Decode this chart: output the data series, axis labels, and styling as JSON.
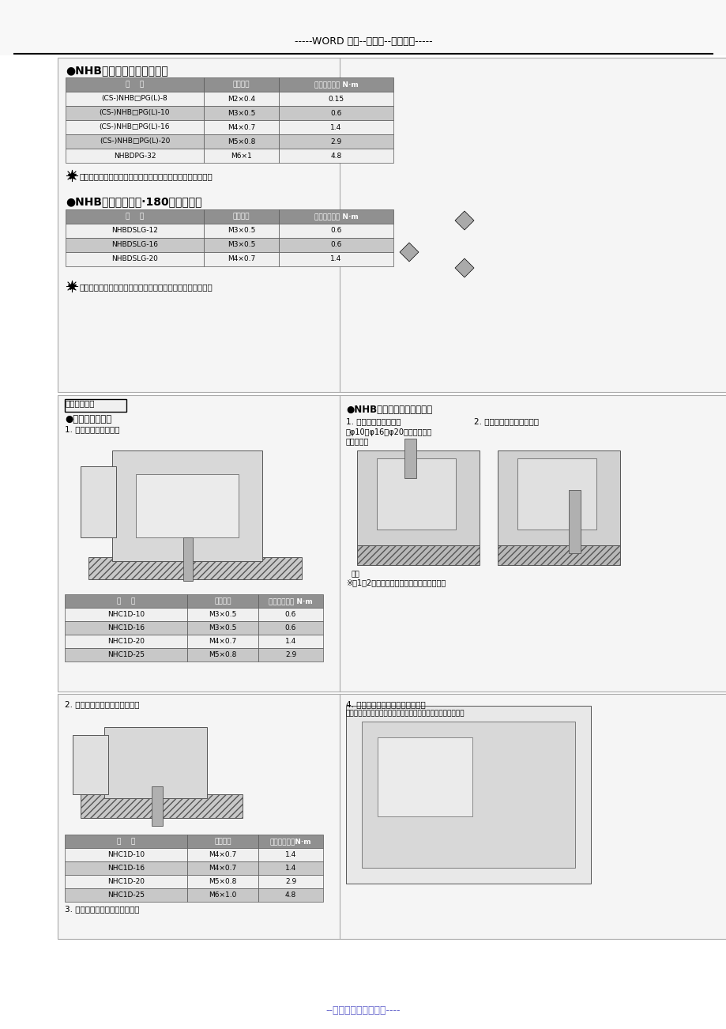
{
  "page_title": "-----WORD 格式--可编辑--专业资料-----",
  "bottom_text": "--完整版学习资料分享----",
  "section1_title": "●NHB系列（直线导轨式样）",
  "table1_headers": [
    "型    号",
    "使用螺栓",
    "最大拧紧扈矩 N·m"
  ],
  "table1_rows": [
    [
      "(CS-)NHB□PG(L)-8",
      "M2×0.4",
      "0.15"
    ],
    [
      "(CS-)NHB□PG(L)-10",
      "M3×0.5",
      "0.6"
    ],
    [
      "(CS-)NHB□PG(L)-16",
      "M4×0.7",
      "1.4"
    ],
    [
      "(CS-)NHB□PG(L)-20",
      "M5×0.8",
      "2.9"
    ],
    [
      "NHBDPG-32",
      "M6×1",
      "4.8"
    ]
  ],
  "note1": "请避免在手指靠拢及手指滚块安装部施加横向载荷进行使用。",
  "section2_title": "●NHB系列（高精度·180度开式样）",
  "table2_headers": [
    "型    号",
    "使用螺栓",
    "最大拧紧扈矩 N·m"
  ],
  "table2_rows": [
    [
      "NHBDSLG-12",
      "M3×0.5",
      "0.6"
    ],
    [
      "NHBDSLG-16",
      "M3×0.5",
      "0.6"
    ],
    [
      "NHBDSLG-20",
      "M4×0.7",
      "1.4"
    ]
  ],
  "note2": "请避免在手指靠拢及手指滚块安装部施加横向载荷进行使用。",
  "box3_title": "本体安装方法",
  "section3_subtitle": "●直线导向并列型",
  "section3_sub1": "1. 使用本体通孔的方法",
  "section4_title": "●NHB系列（直线导轨式样）",
  "section4_sub1": "1. 使用本体通孔的方法",
  "section4_sub2": "2. 使用本体背面螺钉的方法",
  "section4_bracket": "（φ10、φ16、φ20的磁性开关无\n法安装。）",
  "section4_label": "本体",
  "section4_footnote": "※例1、2的情况下，也可使用背面的定位孔。",
  "table3_headers": [
    "型    号",
    "使用螺栓",
    "最大拧紧扈矩 N·m"
  ],
  "table3_rows": [
    [
      "NHC1D-10",
      "M3×0.5",
      "0.6"
    ],
    [
      "NHC1D-16",
      "M3×0.5",
      "0.6"
    ],
    [
      "NHC1D-20",
      "M4×0.7",
      "1.4"
    ],
    [
      "NHC1D-25",
      "M5×0.8",
      "2.9"
    ]
  ],
  "section5_sub2": "2. 使用本体两面安装螺钉的方法",
  "table4_headers": [
    "型    号",
    "使用螺栓",
    "最大拧紧扈矩N·m"
  ],
  "table4_rows": [
    [
      "NHC1D-10",
      "M4×0.7",
      "1.4"
    ],
    [
      "NHC1D-16",
      "M4×0.7",
      "1.4"
    ],
    [
      "NHC1D-20",
      "M5×0.8",
      "2.9"
    ],
    [
      "NHC1D-25",
      "M6×1.0",
      "4.8"
    ]
  ],
  "section5_sub3": "3. 使用本体两侧安装螺钉的方法",
  "section4_sub4": "4. 使用本体端部旁类侧螺钉的方法",
  "section4_sub4_note": "（但是，由于磁性开关等线缆伸出，因此需要考虑让出缺口。）",
  "bg_color": "#ffffff",
  "page_bg": "#f0f0f0",
  "box_bg": "#fafafa",
  "table_header_bg": "#808080",
  "table_alt_bg": "#c8c8c8",
  "table_white_bg": "#f0f0f0",
  "border_color": "#888888"
}
